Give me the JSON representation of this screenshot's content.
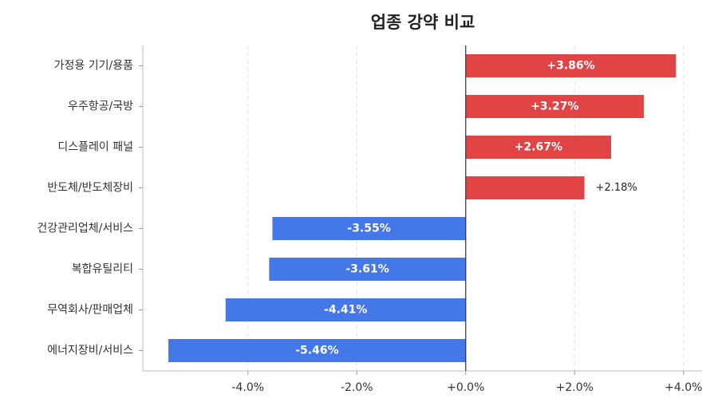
{
  "chart_data": {
    "type": "barh",
    "title": "업종 강약 비교",
    "categories": [
      "가정용 기기/용품",
      "우주항공/국방",
      "디스플레이 패널",
      "반도체/반도체장비",
      "건강관리업체/서비스",
      "복합유틸리티",
      "무역회사/판매업체",
      "에너지장비/서비스"
    ],
    "values": [
      3.86,
      3.27,
      2.67,
      2.18,
      -3.55,
      -3.61,
      -4.41,
      -5.46
    ],
    "value_labels": [
      "+3.86%",
      "+3.27%",
      "+2.67%",
      "+2.18%",
      "-3.55%",
      "-3.61%",
      "-4.41%",
      "-5.46%"
    ],
    "colors": [
      "#e04444",
      "#e04444",
      "#e04444",
      "#e04444",
      "#4477e8",
      "#4477e8",
      "#4477e8",
      "#4477e8"
    ],
    "xlim": [
      -5.93,
      4.34
    ],
    "xticks": [
      {
        "value": -4,
        "label": "-4.0%"
      },
      {
        "value": -2,
        "label": "-2.0%"
      },
      {
        "value": 0,
        "label": "+0.0%"
      },
      {
        "value": 2,
        "label": "+2.0%"
      },
      {
        "value": 4,
        "label": "+4.0%"
      }
    ],
    "grid": true
  }
}
